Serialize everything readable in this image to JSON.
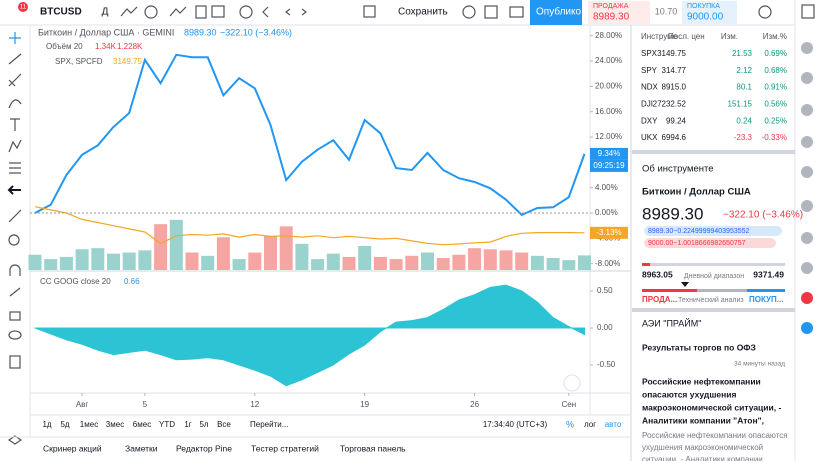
{
  "toolbar": {
    "symbol": "BTCUSD",
    "badge": "11",
    "interval": "Д",
    "save": "Сохранить",
    "publish": "Опублико",
    "sell_label": "ПРОДАЖА",
    "sell_price": "8989.30",
    "spread": "10.70",
    "buy_label": "ПОКУПКА",
    "buy_price": "9000.00"
  },
  "legend": {
    "price": "8989.30",
    "change": "−322.10 (−3.46%)",
    "volume_values": [
      "1.34K",
      "1.228K"
    ],
    "spx_value": "3149.75",
    "osc_value": "0.66"
  },
  "chart_data": [
    {
      "type": "line",
      "x": [
        0,
        1,
        2,
        3,
        4,
        5,
        6,
        7,
        8,
        9,
        10,
        11,
        12,
        13,
        14,
        15,
        16,
        17,
        18,
        19,
        20,
        21,
        22,
        23,
        24,
        25,
        26,
        27,
        28,
        29,
        30,
        31,
        32,
        33,
        34,
        35
      ],
      "xlim": [
        -0.2,
        35.7
      ],
      "xticks": [
        {
          "value": 3,
          "label": "Авг"
        },
        {
          "value": 7,
          "label": "5"
        },
        {
          "value": 14,
          "label": "12"
        },
        {
          "value": 21,
          "label": "19"
        },
        {
          "value": 28,
          "label": "26"
        },
        {
          "value": 34,
          "label": "Сен"
        }
      ],
      "ylim": [
        -9,
        29.7
      ],
      "yticks": [
        {
          "value": 28,
          "label": "28.00%"
        },
        {
          "value": 24,
          "label": "24.00%"
        },
        {
          "value": 20,
          "label": "20.00%"
        },
        {
          "value": 16,
          "label": "16.00%"
        },
        {
          "value": 12,
          "label": "12.00%"
        },
        {
          "value": 8,
          "label": "8.00%"
        },
        {
          "value": 4,
          "label": "4.00%"
        },
        {
          "value": 0,
          "label": "0.00%"
        },
        {
          "value": -4,
          "label": "-4.00%"
        },
        {
          "value": -8,
          "label": "-8.00%"
        }
      ],
      "series": [
        {
          "name": "Биткоин / Доллар США · GEMINI",
          "color": "#2196f3",
          "last_label": "9.34%",
          "countdown": "09:25:19",
          "values": [
            0,
            1.3,
            6,
            9.2,
            10.7,
            13.6,
            15.8,
            24.2,
            20.5,
            25,
            24.6,
            24.6,
            18.6,
            21.3,
            19.7,
            13.9,
            5.2,
            8.1,
            10,
            11.5,
            8.4,
            14.7,
            12.6,
            7.1,
            6.8,
            9.5,
            6.8,
            5.5,
            4.9,
            3.9,
            2.1,
            -0.3,
            0.8,
            0.9,
            2.5,
            9.34
          ]
        },
        {
          "name": "SPX, SPCFD",
          "color": "#f5a623",
          "last_label": "-3.13%",
          "values": [
            1,
            0.5,
            0,
            -1,
            -1.5,
            -2,
            -2.5,
            -3,
            -4.8,
            -3.6,
            -3.4,
            -3.5,
            -3.3,
            -3.8,
            -3.4,
            -3.7,
            -3.6,
            -3.8,
            -3.6,
            -3.9,
            -3.7,
            -3.9,
            -4.1,
            -4.0,
            -4.4,
            -4.8,
            -5.0,
            -4.9,
            -4.7,
            -4.6,
            -3.7,
            -3.2,
            -3.1,
            -3.1,
            -3.1,
            -3.13
          ]
        }
      ]
    },
    {
      "type": "bar",
      "name": "Объём 20",
      "up_color": "#9ad3cd",
      "down_color": "#f5a6a2",
      "ylim": [
        0,
        5.5
      ],
      "values": [
        1.4,
        1.0,
        1.2,
        1.9,
        2.0,
        1.5,
        1.6,
        1.8,
        4.2,
        4.6,
        1.6,
        1.3,
        3.0,
        1.0,
        1.6,
        3.1,
        4.0,
        2.4,
        1.0,
        1.5,
        1.2,
        2.2,
        1.2,
        1.0,
        1.3,
        1.6,
        1.1,
        1.4,
        2.0,
        1.9,
        1.8,
        1.6,
        1.3,
        1.1,
        0.9,
        1.34
      ]
    },
    {
      "type": "area",
      "name": "CC GOOG close 20",
      "color": "#2cc3d5",
      "ylim": [
        -0.865,
        0.716
      ],
      "yticks": [
        {
          "value": 0.5,
          "label": "0.50"
        },
        {
          "value": 0,
          "label": "0.00"
        },
        {
          "value": -0.5,
          "label": "-0.50"
        }
      ],
      "values": [
        0,
        -0.08,
        -0.16,
        -0.22,
        -0.3,
        -0.36,
        -0.33,
        -0.3,
        -0.36,
        -0.43,
        -0.42,
        -0.4,
        -0.43,
        -0.5,
        -0.57,
        -0.65,
        -0.78,
        -0.7,
        -0.6,
        -0.5,
        -0.35,
        -0.23,
        -0.05,
        0.08,
        0.1,
        0.14,
        0.25,
        0.38,
        0.45,
        0.55,
        0.58,
        0.5,
        0.35,
        0.14,
        0.02,
        -0.09
      ]
    }
  ],
  "range_bar": {
    "ranges": [
      "1д",
      "5д",
      "1мес",
      "3мес",
      "6мес",
      "YTD",
      "1г",
      "5л",
      "Все"
    ],
    "goto": "Перейти...",
    "clock": "17:34:40 (UTC+3)",
    "percent": "%",
    "log": "лог",
    "auto": "авто"
  },
  "footer_tabs": [
    "Скринер акций",
    "Заметки",
    "Редактор Pine",
    "Тестер стратегий",
    "Торговая панель"
  ],
  "watchlist": {
    "headers": [
      "Инструме",
      "Посл. цен",
      "Изм.",
      "Изм.%"
    ],
    "rows": [
      [
        "SPX",
        "3149.75",
        "21.53",
        "0.69%"
      ],
      [
        "SPY",
        "314.77",
        "2.12",
        "0.68%"
      ],
      [
        "NDX",
        "8915.0",
        "80.1",
        "0.91%"
      ],
      [
        "DJI",
        "27232.52",
        "151.15",
        "0.56%"
      ],
      [
        "DXY",
        "99.24",
        "0.24",
        "0.25%"
      ],
      [
        "UKX",
        "6994.6",
        "-23.3",
        "-0.33%"
      ]
    ]
  },
  "details": {
    "title": "Об инструменте",
    "name": "Биткоин / Доллар США",
    "price": "8989.30",
    "change": "−322.10 (−3.46%)",
    "bid": "8989.30−0.22499999403953552",
    "ask": "9000.00−1.0018666982650757",
    "low": "8963.05",
    "range_label": "Дневной диапазон",
    "high": "9371.49",
    "sell": "ПРОДА...",
    "tech": "Технический анализ",
    "buy": "ПОКУП..."
  },
  "news": {
    "source": "АЭИ \"ПРАЙМ\"",
    "headline1": "Результаты торгов по ОФЗ",
    "time": "34 минуты назад",
    "headline2": [
      "Российские нефтекомпании",
      "опасаются ухудшения",
      "макроэкономической ситуации, -",
      "Аналитики компании \"Атон\","
    ],
    "snippet": [
      "Российские нефтекомпании опасаются",
      "ухудшения макроэкономической",
      "ситуации. - Аналитики компании"
    ]
  }
}
